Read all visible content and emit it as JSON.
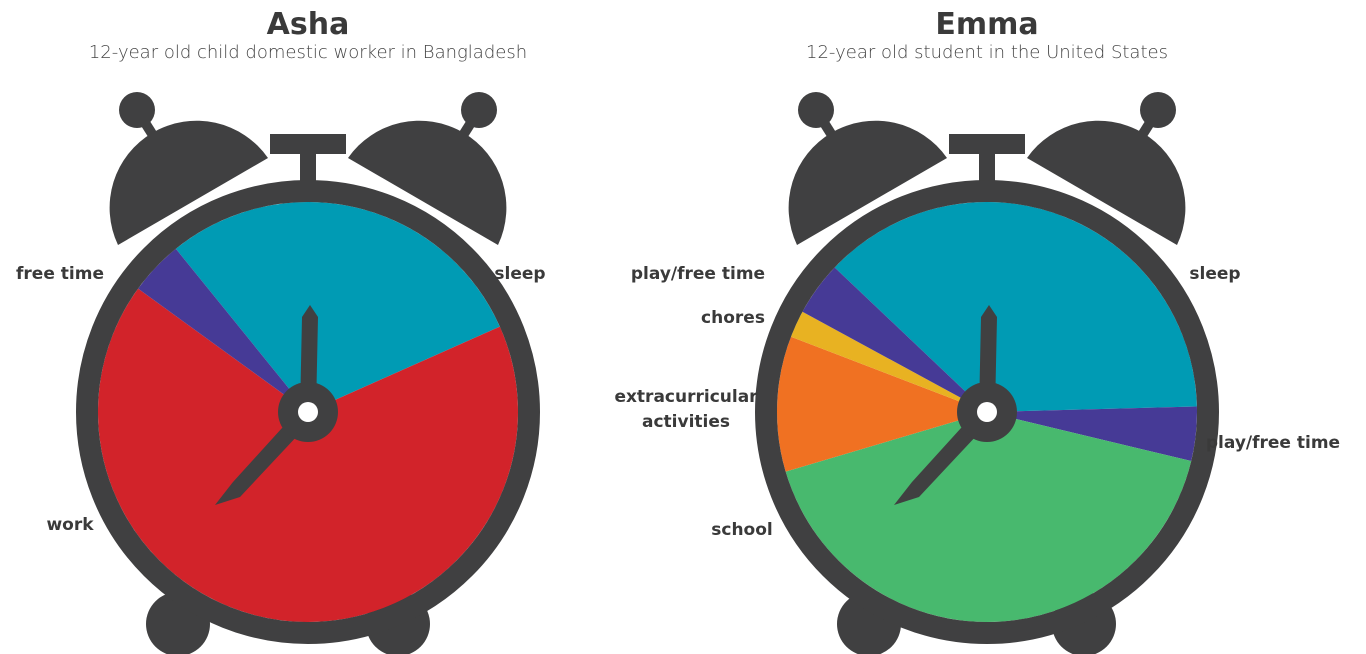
{
  "chart_data": [
    {
      "type": "pie",
      "title": "Asha",
      "subtitle": "12-year old child domestic worker in Bangladesh",
      "categories": [
        "sleep",
        "work",
        "free time"
      ],
      "values": [
        7,
        16,
        1
      ],
      "colors": [
        "#009bb4",
        "#d2232a",
        "#463a96"
      ]
    },
    {
      "type": "pie",
      "title": "Emma",
      "subtitle": "12-year old student in the United States",
      "categories": [
        "sleep",
        "play/free time",
        "school",
        "extracurricular activities",
        "chores",
        "play/free time"
      ],
      "values": [
        9,
        1,
        10,
        2.5,
        0.5,
        1
      ],
      "colors": [
        "#009bb4",
        "#463a96",
        "#48b96e",
        "#f07122",
        "#e8b222",
        "#463a96"
      ]
    }
  ]
}
